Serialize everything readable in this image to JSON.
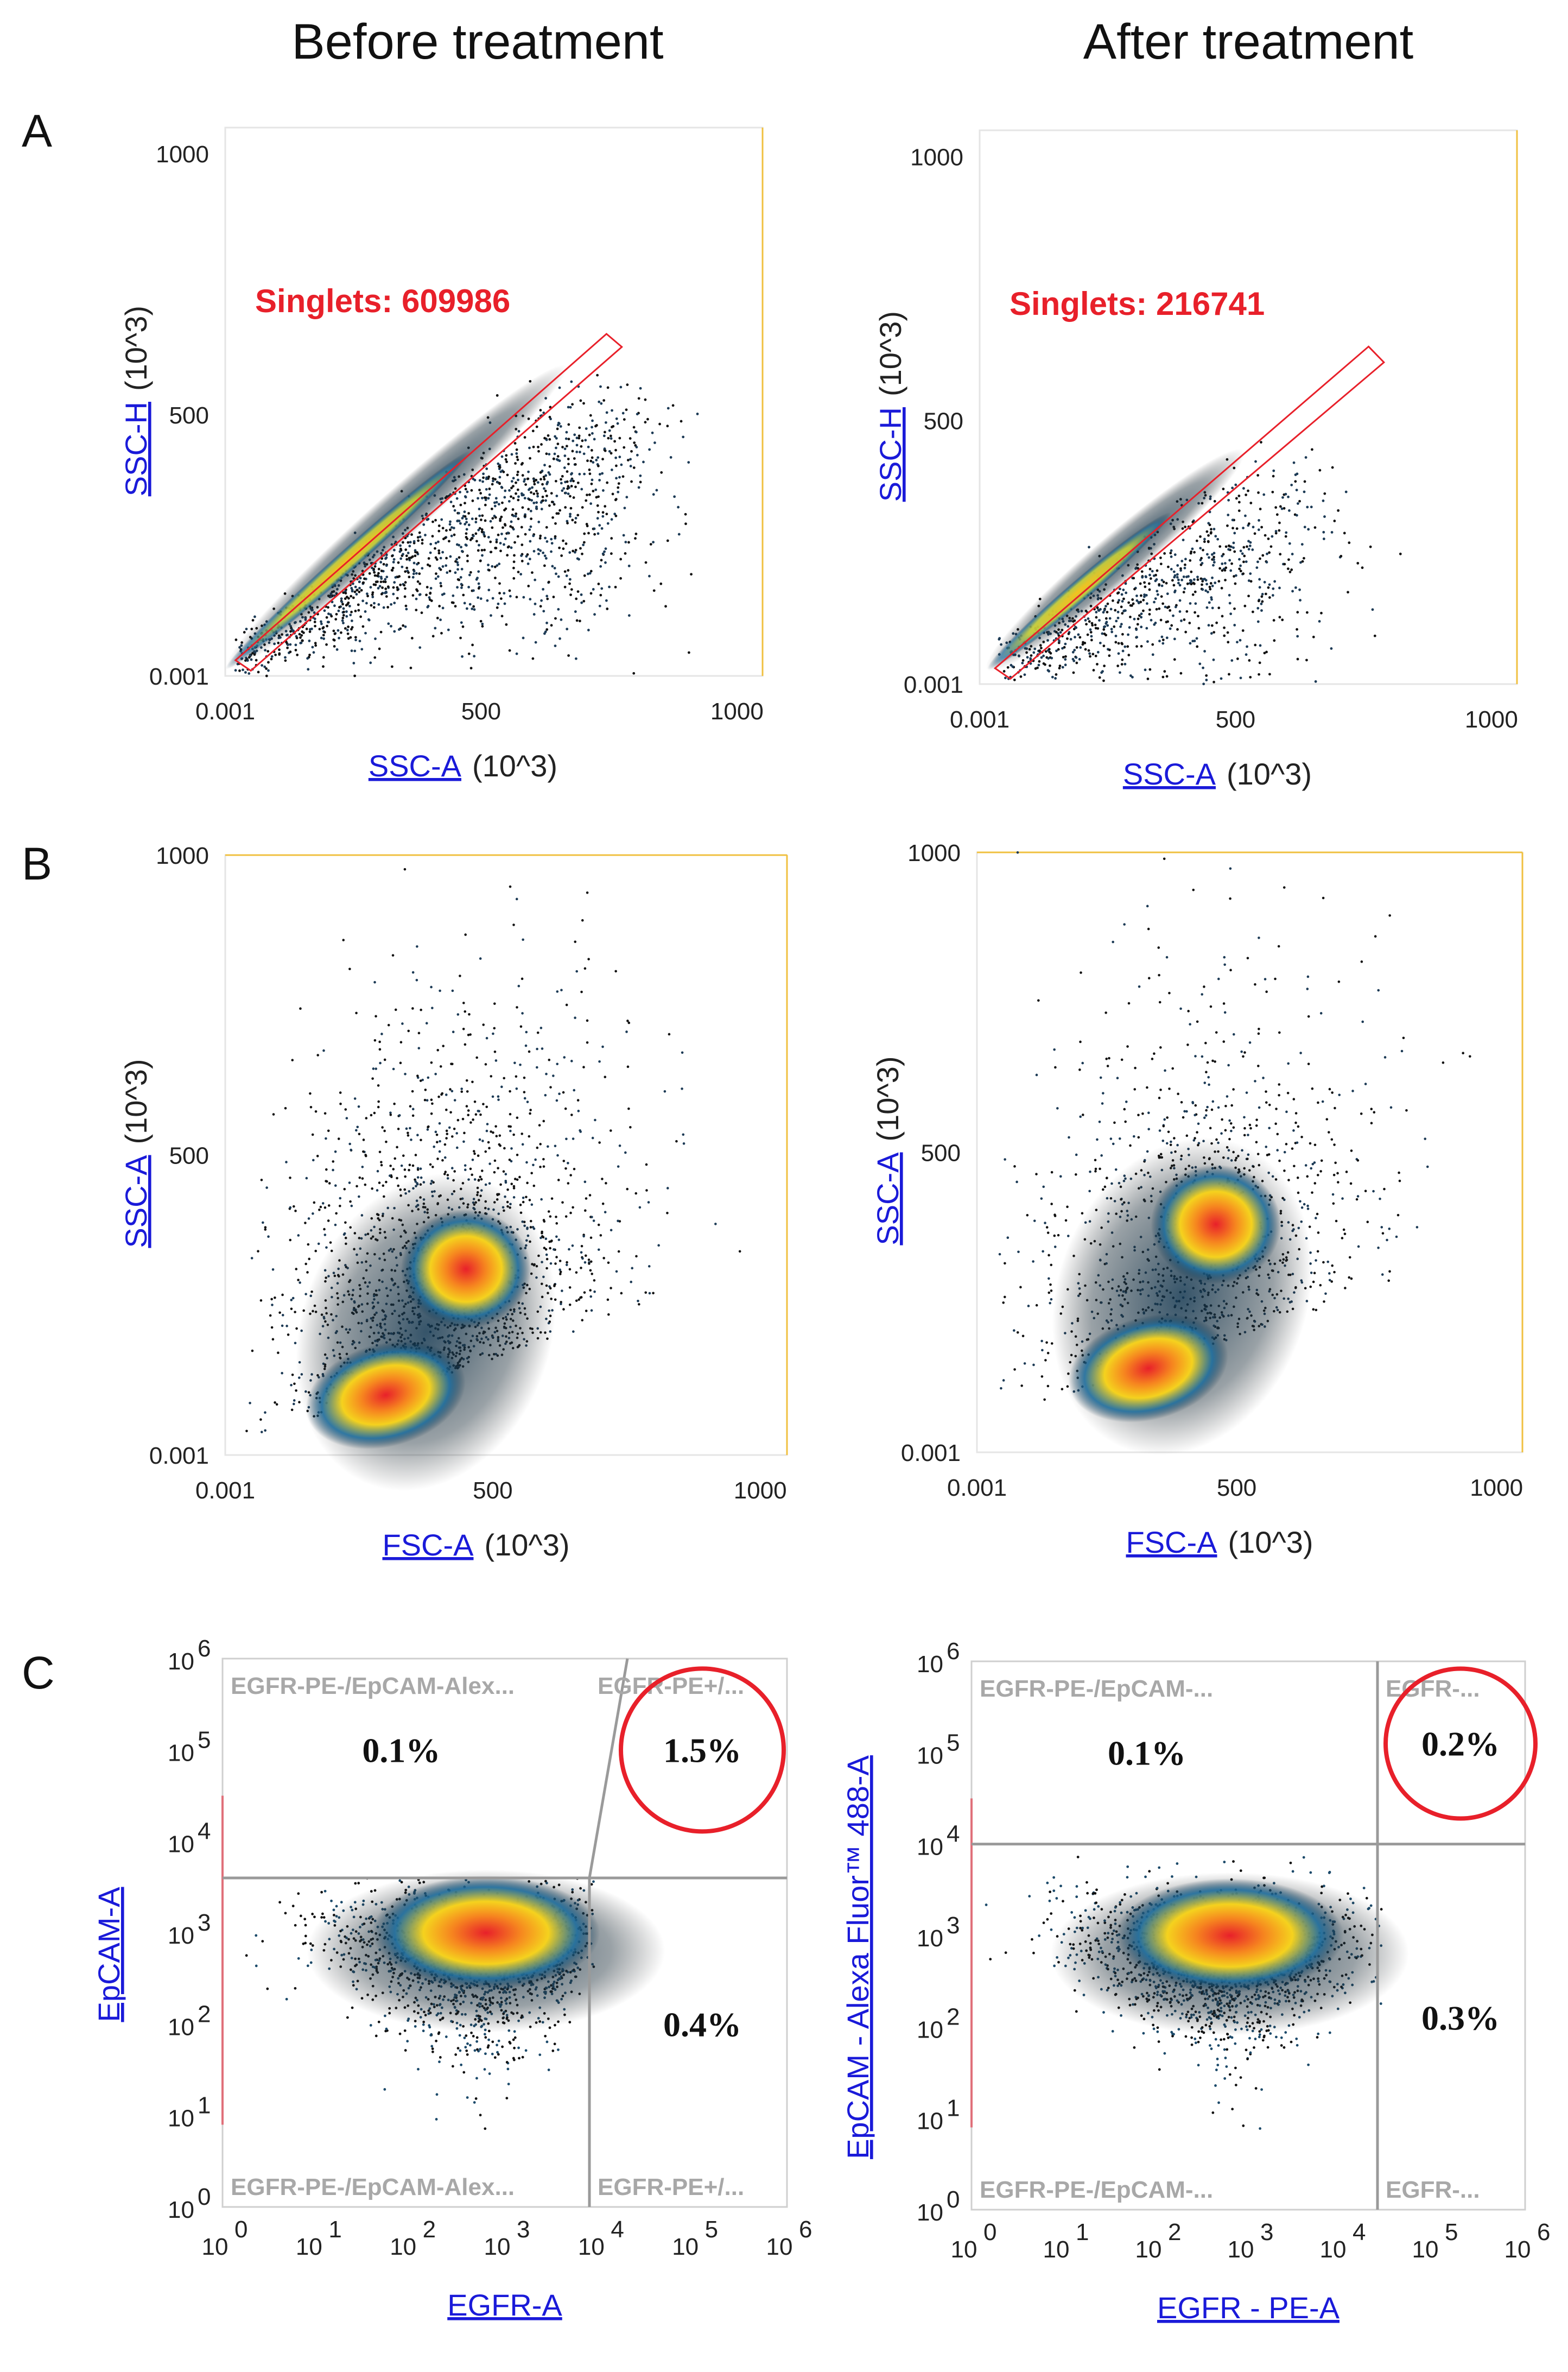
{
  "column_headers": {
    "left": "Before treatment",
    "right": "After treatment"
  },
  "panel_letters": [
    "A",
    "B",
    "C"
  ],
  "chart_data": [
    {
      "id": "A-before",
      "type": "scatter",
      "xlabel": "SSC-A",
      "xunit": "(10^3)",
      "ylabel": "SSC-H",
      "yunit": "(10^3)",
      "xticks": [
        "0.001",
        "500",
        "1000"
      ],
      "yticks": [
        "0.001",
        "500",
        "1000"
      ],
      "xlim": [
        0,
        1050
      ],
      "ylim": [
        0,
        1050
      ],
      "gate": {
        "label": "Singlets: 609986",
        "count": 609986,
        "polygon": [
          [
            20,
            30
          ],
          [
            745,
            655
          ],
          [
            775,
            630
          ],
          [
            50,
            10
          ]
        ]
      },
      "population": {
        "center_line": [
          [
            20,
            30
          ],
          [
            650,
            580
          ]
        ],
        "points": 1500
      }
    },
    {
      "id": "A-after",
      "type": "scatter",
      "xlabel": "SSC-A",
      "xunit": "(10^3)",
      "ylabel": "SSC-H",
      "yunit": "(10^3)",
      "xticks": [
        "0.001",
        "500",
        "1000"
      ],
      "yticks": [
        "0.001",
        "500",
        "1000"
      ],
      "xlim": [
        0,
        1050
      ],
      "ylim": [
        0,
        1050
      ],
      "gate": {
        "label": "Singlets: 216741",
        "count": 216741,
        "polygon": [
          [
            30,
            30
          ],
          [
            760,
            640
          ],
          [
            790,
            610
          ],
          [
            60,
            10
          ]
        ]
      },
      "population": {
        "center_line": [
          [
            30,
            40
          ],
          [
            500,
            430
          ]
        ],
        "points": 900
      }
    },
    {
      "id": "B-before",
      "type": "scatter",
      "xlabel": "FSC-A",
      "xunit": "(10^3)",
      "ylabel": "SSC-A",
      "yunit": "(10^3)",
      "xticks": [
        "0.001",
        "500",
        "1000"
      ],
      "yticks": [
        "0.001",
        "500",
        "1000"
      ],
      "xlim": [
        0,
        1050
      ],
      "ylim": [
        0,
        1000
      ],
      "population": {
        "cores": [
          [
            300,
            100
          ],
          [
            450,
            310
          ]
        ],
        "points": 1800
      }
    },
    {
      "id": "B-after",
      "type": "scatter",
      "xlabel": "FSC-A",
      "xunit": "(10^3)",
      "ylabel": "SSC-A",
      "yunit": "(10^3)",
      "xticks": [
        "0.001",
        "500",
        "1000"
      ],
      "yticks": [
        "0.001",
        "500",
        "1000"
      ],
      "xlim": [
        0,
        1050
      ],
      "ylim": [
        0,
        1000
      ],
      "population": {
        "cores": [
          [
            330,
            140
          ],
          [
            460,
            380
          ]
        ],
        "points": 1200
      }
    },
    {
      "id": "C-before",
      "type": "scatter",
      "xlabel": "EGFR-A",
      "ylabel": "EpCAM-A",
      "xticks": [
        "10",
        "10",
        "10",
        "10",
        "10",
        "10",
        "10"
      ],
      "xtick_exp": [
        "0",
        "1",
        "2",
        "3",
        "4",
        "5",
        "6"
      ],
      "yticks": [
        "10",
        "10",
        "10",
        "10",
        "10",
        "10",
        "10"
      ],
      "ytick_exp": [
        "0",
        "1",
        "2",
        "3",
        "4",
        "5",
        "6"
      ],
      "xlim_log10": [
        0,
        6
      ],
      "ylim_log10": [
        0,
        6
      ],
      "quadrant_labels": [
        "EGFR-PE-/EpCAM-Alex...",
        "EGFR-PE+/...",
        "EGFR-PE-/EpCAM-Alex...",
        "EGFR-PE+/..."
      ],
      "percentages": {
        "upper_left": "0.1%",
        "upper_right": "1.5%",
        "lower_right": "0.4%"
      },
      "divider_log10": {
        "x": 3.9,
        "y": 3.6
      }
    },
    {
      "id": "C-after",
      "type": "scatter",
      "xlabel": "EGFR - PE-A",
      "ylabel": "EpCAM - Alexa Fluor™ 488-A",
      "xticks": [
        "10",
        "10",
        "10",
        "10",
        "10",
        "10",
        "10"
      ],
      "xtick_exp": [
        "0",
        "1",
        "2",
        "3",
        "4",
        "5",
        "6"
      ],
      "yticks": [
        "10",
        "10",
        "10",
        "10",
        "10",
        "10",
        "10"
      ],
      "ytick_exp": [
        "0",
        "1",
        "2",
        "3",
        "4",
        "5",
        "6"
      ],
      "xlim_log10": [
        0,
        6
      ],
      "ylim_log10": [
        0,
        6
      ],
      "quadrant_labels": [
        "EGFR-PE-/EpCAM-...",
        "EGFR-...",
        "EGFR-PE-/EpCAM-...",
        "EGFR-..."
      ],
      "percentages": {
        "upper_left": "0.1%",
        "upper_right": "0.2%",
        "lower_right": "0.3%"
      },
      "divider_log10": {
        "x": 4.4,
        "y": 4.0
      }
    }
  ]
}
